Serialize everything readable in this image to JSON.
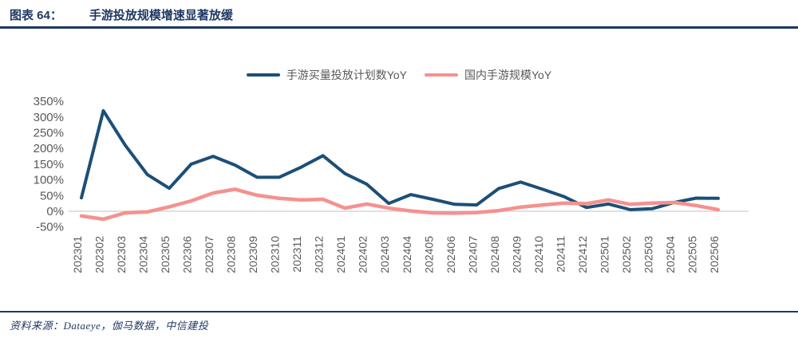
{
  "header": {
    "figure_label": "图表 64：",
    "title": "手游投放规模增速显著放缓"
  },
  "legend": [
    {
      "label": "手游买量投放计划数YoY",
      "color": "#1B4F78"
    },
    {
      "label": "国内手游规模YoY",
      "color": "#F5918F"
    }
  ],
  "footer": {
    "source": "资料来源：Dataeye，伽马数据，中信建投"
  },
  "colors": {
    "accent_navy": "#1F3864",
    "line_blue": "#1B4F78",
    "line_pink": "#F5918F",
    "tick_text": "#595959",
    "zero_gridline": "#D6D6D6"
  },
  "chart_data": {
    "type": "line",
    "title": "手游投放规模增速显著放缓",
    "categories": [
      "202301",
      "202302",
      "202303",
      "202304",
      "202305",
      "202306",
      "202307",
      "202308",
      "202309",
      "202310",
      "202311",
      "202312",
      "202401",
      "202402",
      "202403",
      "202404",
      "202405",
      "202406",
      "202407",
      "202408",
      "202409",
      "202410",
      "202411",
      "202412",
      "202501",
      "202502",
      "202503",
      "202504",
      "202505",
      "202506"
    ],
    "series": [
      {
        "name": "手游买量投放计划数YoY",
        "color": "#1B4F78",
        "values": [
          43,
          320,
          210,
          117,
          73,
          150,
          175,
          147,
          108,
          108,
          140,
          177,
          120,
          86,
          25,
          53,
          38,
          22,
          20,
          72,
          93,
          70,
          46,
          12,
          23,
          5,
          8,
          28,
          42,
          41
        ]
      },
      {
        "name": "国内手游规模YoY",
        "color": "#F5918F",
        "values": [
          -15,
          -25,
          -5,
          -2,
          14,
          33,
          58,
          70,
          51,
          41,
          36,
          38,
          10,
          23,
          10,
          1,
          -5,
          -6,
          -4,
          2,
          13,
          20,
          26,
          24,
          36,
          22,
          26,
          28,
          18,
          5
        ]
      }
    ],
    "ylim": [
      -50,
      350
    ],
    "y_ticks": [
      350,
      300,
      250,
      200,
      150,
      100,
      50,
      0,
      -50
    ],
    "y_tick_suffix": "%",
    "grid": "zero-line-only",
    "legend_position": "top-center",
    "x_label_rotation": -90
  }
}
